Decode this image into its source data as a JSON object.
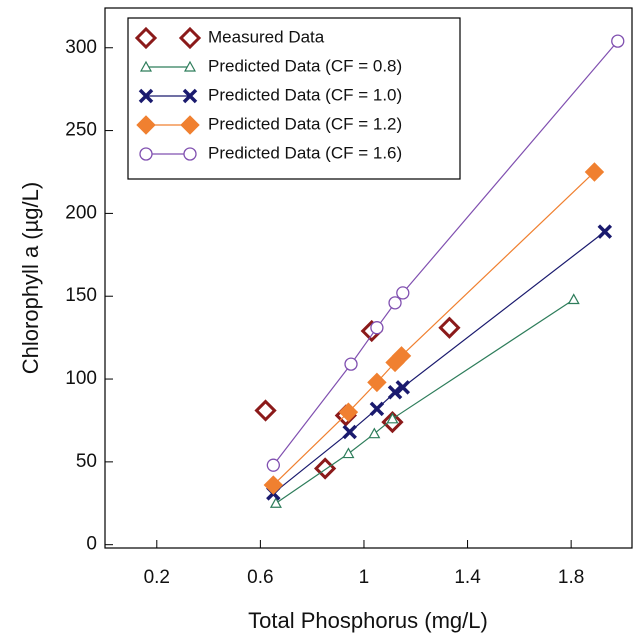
{
  "chart_data": {
    "type": "scatter",
    "xlabel": "Total Phosphorus (mg/L)",
    "ylabel": "Chlorophyll a (µg/L)",
    "xlim": [
      0,
      2.035
    ],
    "ylim": [
      -2,
      324
    ],
    "xticks": [
      0.2,
      0.6,
      1.0,
      1.4,
      1.8
    ],
    "yticks": [
      0,
      50,
      100,
      150,
      200,
      250,
      300
    ],
    "legend": "upper-left",
    "series": [
      {
        "name": "Measured Data",
        "color": "#8b1a1a",
        "marker": "diamond",
        "line": false,
        "x": [
          0.62,
          0.85,
          0.93,
          1.03,
          1.11,
          1.33
        ],
        "values": [
          81,
          46,
          78,
          129,
          74,
          131
        ]
      },
      {
        "name": "Predicted Data (CF = 0.8)",
        "color": "#2e7d5b",
        "marker": "triangle",
        "line": true,
        "x": [
          0.66,
          0.94,
          1.04,
          1.11,
          1.81
        ],
        "values": [
          25,
          55,
          67,
          76,
          148
        ]
      },
      {
        "name": "Predicted Data (CF = 1.0)",
        "color": "#1a1a6e",
        "marker": "x",
        "line": true,
        "x": [
          0.65,
          0.945,
          1.05,
          1.12,
          1.15,
          1.93
        ],
        "values": [
          31,
          68,
          82,
          92,
          95,
          189
        ]
      },
      {
        "name": "Predicted Data (CF = 1.2)",
        "color": "#f08030",
        "marker": "filled-diamond",
        "line": true,
        "x": [
          0.65,
          0.94,
          1.05,
          1.12,
          1.145,
          1.89
        ],
        "values": [
          36,
          80,
          98,
          110,
          114,
          225
        ]
      },
      {
        "name": "Predicted Data (CF = 1.6)",
        "color": "#8050b0",
        "marker": "circle",
        "line": true,
        "x": [
          0.65,
          0.95,
          1.05,
          1.12,
          1.15,
          1.98
        ],
        "values": [
          48,
          109,
          131,
          146,
          152,
          304
        ]
      }
    ]
  }
}
